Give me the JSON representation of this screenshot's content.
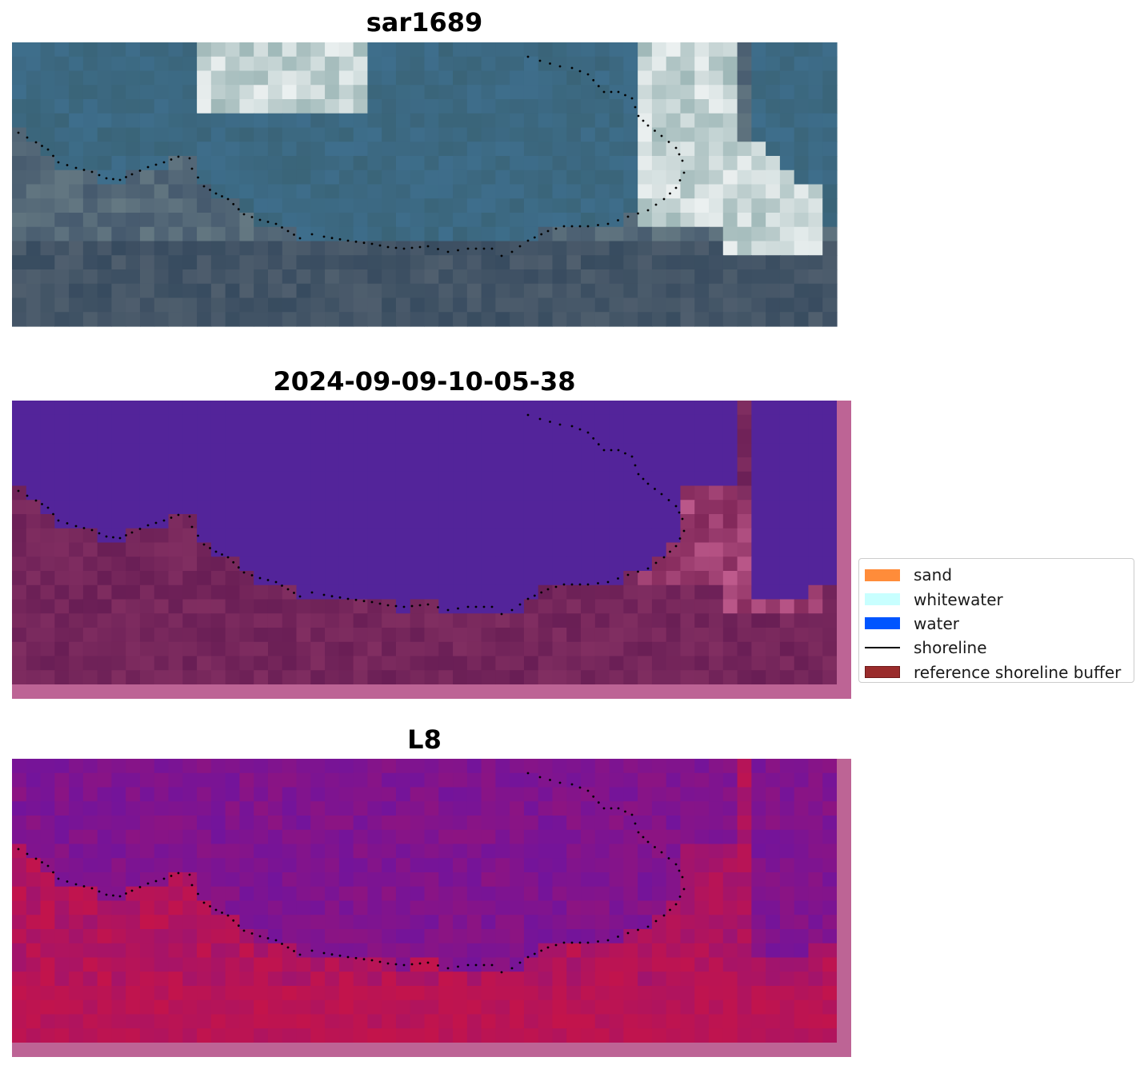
{
  "panels": [
    {
      "title": "sar1689",
      "style": "rgb"
    },
    {
      "title": "2024-09-09-10-05-38",
      "style": "classified"
    },
    {
      "title": "L8",
      "style": "index"
    }
  ],
  "legend": {
    "items": [
      {
        "label": "sand",
        "color": "#ff8c3a",
        "kind": "patch"
      },
      {
        "label": "whitewater",
        "color": "#c8ffff",
        "kind": "patch"
      },
      {
        "label": "water",
        "color": "#0055ff",
        "kind": "patch"
      },
      {
        "label": "shoreline",
        "color": "#000000",
        "kind": "line"
      },
      {
        "label": "reference shoreline buffer",
        "color": "#9a2c2c",
        "kind": "patch"
      }
    ]
  },
  "colors": {
    "water_class": "#53249a",
    "buffer_overlay": "#bd6495",
    "shoreline_dots": "#000000"
  }
}
